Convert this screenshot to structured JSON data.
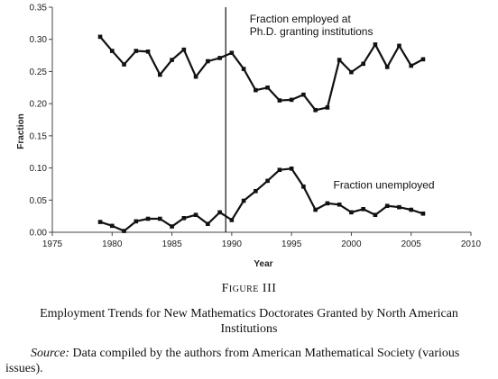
{
  "chart_data": {
    "type": "line",
    "xlabel": "Year",
    "ylabel": "Fraction",
    "xlim": [
      1975,
      2010
    ],
    "ylim": [
      0,
      0.35
    ],
    "x_ticks": [
      "1975",
      "1980",
      "1985",
      "1990",
      "1995",
      "2000",
      "2005",
      "2010"
    ],
    "y_ticks": [
      "0.00",
      "0.05",
      "0.10",
      "0.15",
      "0.20",
      "0.25",
      "0.30",
      "0.35"
    ],
    "grid": false,
    "vertical_marker_x": 1989.5,
    "x": [
      1979,
      1980,
      1981,
      1982,
      1983,
      1984,
      1985,
      1986,
      1987,
      1988,
      1989,
      1990,
      1991,
      1992,
      1993,
      1994,
      1995,
      1996,
      1997,
      1998,
      1999,
      2000,
      2001,
      2002,
      2003,
      2004,
      2005,
      2006
    ],
    "series": [
      {
        "values": [
          0.304,
          0.282,
          0.261,
          0.282,
          0.281,
          0.245,
          0.268,
          0.284,
          0.242,
          0.266,
          0.271,
          0.279,
          0.254,
          0.221,
          0.225,
          0.205,
          0.206,
          0.214,
          0.19,
          0.194,
          0.268,
          0.249,
          0.262,
          0.292,
          0.257,
          0.29,
          0.259,
          0.269
        ]
      },
      {
        "values": [
          0.016,
          0.01,
          0.002,
          0.017,
          0.021,
          0.021,
          0.009,
          0.022,
          0.027,
          0.013,
          0.031,
          0.019,
          0.049,
          0.064,
          0.08,
          0.097,
          0.099,
          0.071,
          0.035,
          0.045,
          0.043,
          0.031,
          0.036,
          0.027,
          0.041,
          0.039,
          0.035,
          0.029
        ]
      }
    ],
    "annotations": [
      {
        "lines": [
          "Fraction employed at",
          "Ph.D. granting institutions"
        ],
        "x": 1991.5,
        "y": 0.326
      },
      {
        "lines": [
          "Fraction unemployed"
        ],
        "x": 1998.5,
        "y": 0.068
      }
    ]
  },
  "caption": {
    "figure_label": "Figure III",
    "title": "Employment Trends for New Mathematics Doctorates Granted by North American Institutions",
    "source_label": "Source:",
    "source_text": " Data compiled by the authors from American Mathematical Society (various issues)."
  }
}
